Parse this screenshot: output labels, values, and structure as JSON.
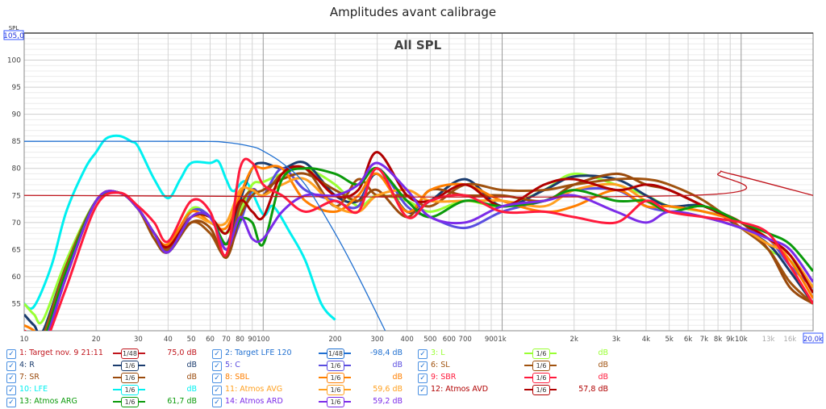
{
  "title": "Amplitudes avant calibrage",
  "chart_data": {
    "type": "line",
    "title": "Amplitudes avant calibrage",
    "subtitle": "All SPL",
    "ylabel": "SPL",
    "ylim_label": "105,0",
    "xscale": "log",
    "xlim": [
      10,
      20000
    ],
    "ylim": [
      50,
      105
    ],
    "grid": true,
    "yticks": [
      "55",
      "60",
      "65",
      "70",
      "75",
      "80",
      "85",
      "90",
      "95",
      "100"
    ],
    "ytick_values": [
      55,
      60,
      65,
      70,
      75,
      80,
      85,
      90,
      95,
      100
    ],
    "xticks": [
      {
        "v": 10,
        "t": "10"
      },
      {
        "v": 20,
        "t": "20"
      },
      {
        "v": 30,
        "t": "30"
      },
      {
        "v": 40,
        "t": "40"
      },
      {
        "v": 50,
        "t": "50"
      },
      {
        "v": 60,
        "t": "60"
      },
      {
        "v": 70,
        "t": "70"
      },
      {
        "v": 80,
        "t": "80"
      },
      {
        "v": 90,
        "t": "90"
      },
      {
        "v": 100,
        "t": "100"
      },
      {
        "v": 200,
        "t": "200"
      },
      {
        "v": 300,
        "t": "300"
      },
      {
        "v": 400,
        "t": "400"
      },
      {
        "v": 500,
        "t": "500"
      },
      {
        "v": 600,
        "t": "600"
      },
      {
        "v": 700,
        "t": "700"
      },
      {
        "v": 900,
        "t": "900"
      },
      {
        "v": 1000,
        "t": "1k"
      },
      {
        "v": 2000,
        "t": "2k"
      },
      {
        "v": 3000,
        "t": "3k"
      },
      {
        "v": 4000,
        "t": "4k"
      },
      {
        "v": 5000,
        "t": "5k"
      },
      {
        "v": 6000,
        "t": "6k"
      },
      {
        "v": 7000,
        "t": "7k"
      },
      {
        "v": 8000,
        "t": "8k"
      },
      {
        "v": 9000,
        "t": "9k"
      },
      {
        "v": 10000,
        "t": "10k"
      },
      {
        "v": 13000,
        "t": "13k",
        "muted": true
      },
      {
        "v": 16000,
        "t": "16k",
        "muted": true
      },
      {
        "v": 20000,
        "t": "20,0k",
        "boxed": true
      }
    ],
    "x": [
      10,
      11,
      12,
      15,
      20,
      25,
      30,
      35,
      40,
      50,
      60,
      70,
      80,
      90,
      100,
      120,
      150,
      200,
      250,
      300,
      400,
      500,
      700,
      1000,
      1500,
      2000,
      3000,
      4000,
      5000,
      7000,
      10000,
      13000,
      16000,
      20000
    ],
    "series": [
      {
        "name": "1: Target nov. 9 21:11",
        "color": "#c0141c",
        "smoothing": "1/48",
        "value": "75,0 dB",
        "width": 1.3,
        "x": [
          10,
          6000,
          8000,
          9000,
          20000
        ],
        "y": [
          75,
          75,
          79,
          79,
          75
        ]
      },
      {
        "name": "2: Target LFE 120",
        "color": "#1f6fd0",
        "smoothing": "1/48",
        "value": "-98,4 dB",
        "width": 1.3,
        "x": [
          10,
          50,
          70,
          90,
          100,
          120,
          150,
          200,
          250,
          324
        ],
        "y": [
          85,
          85,
          84.8,
          84,
          83.2,
          81,
          77,
          68,
          60,
          50
        ]
      },
      {
        "name": "3: L",
        "color": "#99ff33",
        "smoothing": "1/6",
        "value": "dB",
        "y": [
          55,
          53,
          52,
          63,
          74,
          75.5,
          72.5,
          68,
          65,
          72.5,
          71,
          68,
          72,
          77,
          77.5,
          79,
          80,
          77,
          73,
          75,
          74,
          72,
          74,
          73,
          76,
          79,
          77,
          75,
          73,
          72,
          70,
          65,
          63,
          58
        ]
      },
      {
        "name": "4: R",
        "color": "#1a3c6e",
        "smoothing": "1/6",
        "value": "dB",
        "y": [
          53,
          51,
          50,
          62,
          74,
          75.5,
          72.5,
          68,
          65,
          72,
          71,
          66,
          74,
          80,
          81,
          80,
          81,
          75,
          74,
          79,
          72,
          74,
          78,
          73,
          76,
          78.5,
          78,
          75,
          73,
          73,
          69,
          66,
          61,
          55
        ]
      },
      {
        "name": "5: C",
        "color": "#5a4de0",
        "smoothing": "1/6",
        "value": "dB",
        "y": [
          50,
          49,
          48,
          61,
          74,
          75.5,
          72.5,
          68,
          65,
          72,
          71,
          65,
          70,
          76,
          75,
          80,
          76,
          74,
          73,
          80,
          73,
          71,
          69,
          72,
          74,
          76,
          76,
          73,
          72,
          71,
          69,
          67,
          62,
          58
        ]
      },
      {
        "name": "6: SL",
        "color": "#a0520f",
        "smoothing": "1/6",
        "value": "dB",
        "y": [
          49,
          48,
          49,
          62,
          74,
          75.5,
          72.5,
          68,
          65,
          70,
          68,
          64,
          73,
          76,
          75,
          79,
          80,
          73,
          78,
          75,
          75,
          73,
          77,
          76,
          76,
          77,
          78,
          78,
          77,
          74,
          69,
          65,
          59,
          55
        ]
      },
      {
        "name": "7: SR",
        "color": "#9a4a0c",
        "smoothing": "1/6",
        "value": "dB",
        "y": [
          50,
          49,
          48,
          61,
          74,
          75.5,
          72.5,
          67,
          64.5,
          70,
          69,
          63.5,
          71,
          75,
          76,
          78,
          79,
          76,
          74,
          76,
          71,
          76,
          75,
          75,
          74,
          77,
          79,
          77,
          76,
          73,
          70,
          65,
          58,
          55
        ]
      },
      {
        "name": "8: SBL",
        "color": "#ff7f00",
        "smoothing": "1/6",
        "value": "dB",
        "y": [
          51,
          50,
          48,
          60,
          74,
          75.5,
          72.5,
          68,
          66,
          72,
          70,
          69,
          75,
          80,
          80,
          80,
          74,
          72,
          75,
          79,
          72,
          76,
          77,
          74,
          72,
          73,
          76,
          73,
          73,
          72,
          70,
          67,
          63,
          56
        ]
      },
      {
        "name": "9: SBR",
        "color": "#ff1a3c",
        "smoothing": "1/6",
        "value": "dB",
        "y": [
          50,
          49,
          47,
          58,
          73,
          75.5,
          73,
          70,
          66.5,
          74,
          72,
          64,
          80,
          81,
          77,
          75,
          72,
          74,
          72,
          80,
          71,
          74,
          75,
          72,
          72,
          71,
          70,
          74,
          72,
          71,
          70,
          68,
          62,
          55
        ]
      },
      {
        "name": "10: LFE",
        "color": "#00f0f0",
        "smoothing": "1/6",
        "value": "dB",
        "x": [
          10,
          11,
          13,
          15,
          18,
          20,
          22,
          25,
          28,
          30,
          35,
          40,
          45,
          50,
          60,
          65,
          70,
          75,
          85,
          100,
          110,
          130,
          150,
          175,
          200
        ],
        "y": [
          55,
          54.5,
          62,
          72,
          80,
          83,
          85.5,
          86,
          85,
          84,
          78,
          74.5,
          78,
          81,
          81,
          81.3,
          78,
          75.8,
          77.5,
          71.5,
          73,
          68,
          63,
          55,
          52
        ]
      },
      {
        "name": "11: Atmos AVG",
        "color": "#ffa020",
        "smoothing": "1/6",
        "value": "59,6 dB",
        "y": [
          50,
          49,
          48,
          61,
          74,
          75.5,
          72.5,
          68,
          65.5,
          71,
          70,
          70,
          76,
          76,
          75,
          77,
          78,
          73,
          72,
          75,
          76,
          74,
          74,
          74,
          73,
          76,
          77,
          74,
          72,
          71,
          69,
          66,
          64,
          58
        ]
      },
      {
        "name": "12: Atmos AVD",
        "color": "#b00000",
        "smoothing": "1/6",
        "value": "57,8 dB",
        "y": [
          50,
          48,
          47,
          60,
          74,
          75.5,
          72.5,
          68,
          65.5,
          71,
          71,
          68,
          74,
          72,
          71,
          79,
          80,
          75,
          76,
          83,
          75,
          74,
          77,
          73,
          77,
          78,
          76,
          77,
          76,
          73,
          70,
          67,
          64,
          57
        ]
      },
      {
        "name": "13: Atmos ARG",
        "color": "#0a9a0a",
        "smoothing": "1/6",
        "value": "61,7 dB",
        "y": [
          50,
          49,
          48,
          61,
          74,
          75.5,
          72.5,
          68,
          64.5,
          71,
          71,
          66,
          70.5,
          70,
          66,
          78,
          80,
          79,
          77,
          80,
          74,
          71,
          74,
          73,
          74,
          76,
          74,
          74,
          72,
          73,
          70,
          68,
          66,
          61
        ]
      },
      {
        "name": "14: Atmos ARD",
        "color": "#7b2be8",
        "smoothing": "1/6",
        "value": "59,2 dB",
        "y": [
          49,
          48,
          47,
          60,
          74,
          75.5,
          72.5,
          68,
          64.5,
          71,
          71,
          65,
          71,
          67,
          67,
          72,
          75,
          75,
          77,
          81,
          76,
          71,
          70,
          73,
          74,
          75,
          72,
          70,
          72,
          71,
          69,
          67,
          65,
          59
        ]
      }
    ]
  }
}
